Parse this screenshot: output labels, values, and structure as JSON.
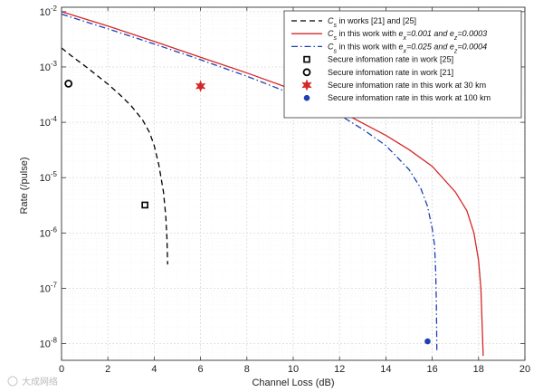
{
  "chart_data": {
    "type": "line",
    "title": "",
    "xlabel": "Channel Loss (dB)",
    "ylabel": "Rate (/pulse)",
    "xlim": [
      0,
      20
    ],
    "ylim": [
      5e-09,
      0.012
    ],
    "yscale": "log",
    "grid": true,
    "legend_position": "top-right",
    "x_ticks": [
      0,
      2,
      4,
      6,
      8,
      10,
      12,
      14,
      16,
      18,
      20
    ],
    "x_tick_labels": [
      "0",
      "2",
      "4",
      "6",
      "8",
      "10",
      "12",
      "14",
      "16",
      "18",
      "20"
    ],
    "y_ticks": [
      1e-08,
      1e-07,
      1e-06,
      1e-05,
      0.0001,
      0.001,
      0.01
    ],
    "y_tick_labels": [
      {
        "base": "10",
        "exp": "-8"
      },
      {
        "base": "10",
        "exp": "-7"
      },
      {
        "base": "10",
        "exp": "-6"
      },
      {
        "base": "10",
        "exp": "-5"
      },
      {
        "base": "10",
        "exp": "-4"
      },
      {
        "base": "10",
        "exp": "-3"
      },
      {
        "base": "10",
        "exp": "-2"
      }
    ],
    "series": [
      {
        "legend_parts": [
          [
            "C",
            "italic"
          ],
          [
            "s",
            "italic-sub"
          ],
          [
            " in works [21] and [25]",
            "normal"
          ]
        ],
        "style": "dashed",
        "color": "#000000",
        "points": [
          [
            0,
            0.0022
          ],
          [
            0.5,
            0.0015
          ],
          [
            1,
            0.00105
          ],
          [
            1.5,
            0.00072
          ],
          [
            2,
            0.00049
          ],
          [
            2.5,
            0.00032
          ],
          [
            3,
            0.0002
          ],
          [
            3.5,
            0.00011
          ],
          [
            3.8,
            6.5e-05
          ],
          [
            4.0,
            3.8e-05
          ],
          [
            4.2,
            1.7e-05
          ],
          [
            4.4,
            5.5e-06
          ],
          [
            4.5,
            2e-06
          ],
          [
            4.55,
            8e-07
          ],
          [
            4.58,
            2.7e-07
          ]
        ]
      },
      {
        "legend_parts": [
          [
            "C",
            "italic"
          ],
          [
            "s",
            "italic-sub"
          ],
          [
            " in this work with ",
            "normal"
          ],
          [
            "e",
            "italic"
          ],
          [
            "x",
            "italic-sub"
          ],
          [
            "=0.001 and ",
            "italic"
          ],
          [
            "e",
            "italic"
          ],
          [
            "z",
            "italic-sub"
          ],
          [
            "=0.0003",
            "italic"
          ]
        ],
        "style": "solid",
        "color": "#d62728",
        "points": [
          [
            0,
            0.01
          ],
          [
            2,
            0.0055
          ],
          [
            4,
            0.0029
          ],
          [
            6,
            0.0015
          ],
          [
            8,
            0.00078
          ],
          [
            10,
            0.00039
          ],
          [
            12,
            0.00016
          ],
          [
            14,
            5.8e-05
          ],
          [
            15,
            3.2e-05
          ],
          [
            16,
            1.6e-05
          ],
          [
            17,
            5.5e-06
          ],
          [
            17.5,
            2.5e-06
          ],
          [
            17.8,
            1e-06
          ],
          [
            18.0,
            3.2e-07
          ],
          [
            18.1,
            1e-07
          ],
          [
            18.15,
            2.5e-08
          ],
          [
            18.2,
            6e-09
          ]
        ]
      },
      {
        "legend_parts": [
          [
            "C",
            "italic"
          ],
          [
            "s",
            "italic-sub"
          ],
          [
            " in this work with ",
            "normal"
          ],
          [
            "e",
            "italic"
          ],
          [
            "x",
            "italic-sub"
          ],
          [
            "=0.025 and ",
            "italic"
          ],
          [
            "e",
            "italic"
          ],
          [
            "z",
            "italic-sub"
          ],
          [
            "=0.0004",
            "italic"
          ]
        ],
        "style": "dashdot",
        "color": "#1f3fb4",
        "points": [
          [
            0,
            0.009
          ],
          [
            2,
            0.0049
          ],
          [
            4,
            0.0026
          ],
          [
            6,
            0.00135
          ],
          [
            8,
            0.00068
          ],
          [
            10,
            0.00032
          ],
          [
            12,
            0.000135
          ],
          [
            13,
            7.5e-05
          ],
          [
            14,
            3.8e-05
          ],
          [
            15,
            1.4e-05
          ],
          [
            15.5,
            6.5e-06
          ],
          [
            15.8,
            3e-06
          ],
          [
            16.0,
            1.2e-06
          ],
          [
            16.1,
            6e-07
          ],
          [
            16.15,
            2e-07
          ],
          [
            16.18,
            5e-08
          ],
          [
            16.2,
            7e-09
          ]
        ]
      }
    ],
    "markers": [
      {
        "legend": "Secure infomation rate in work [25]",
        "shape": "square",
        "color": "#000000",
        "x": 3.6,
        "y": 3.2e-06
      },
      {
        "legend": "Secure infomation rate in work [21]",
        "shape": "circle-open",
        "color": "#000000",
        "x": 0.3,
        "y": 0.0005
      },
      {
        "legend": "Secure infomation rate in this work at 30 km",
        "shape": "star",
        "color": "#d62728",
        "x": 6.0,
        "y": 0.00045
      },
      {
        "legend": "Secure infomation rate in this work at 100 km",
        "shape": "circle-filled",
        "color": "#1f3fb4",
        "x": 15.8,
        "y": 1.1e-08
      }
    ]
  },
  "watermark": {
    "text": "大成网络"
  }
}
